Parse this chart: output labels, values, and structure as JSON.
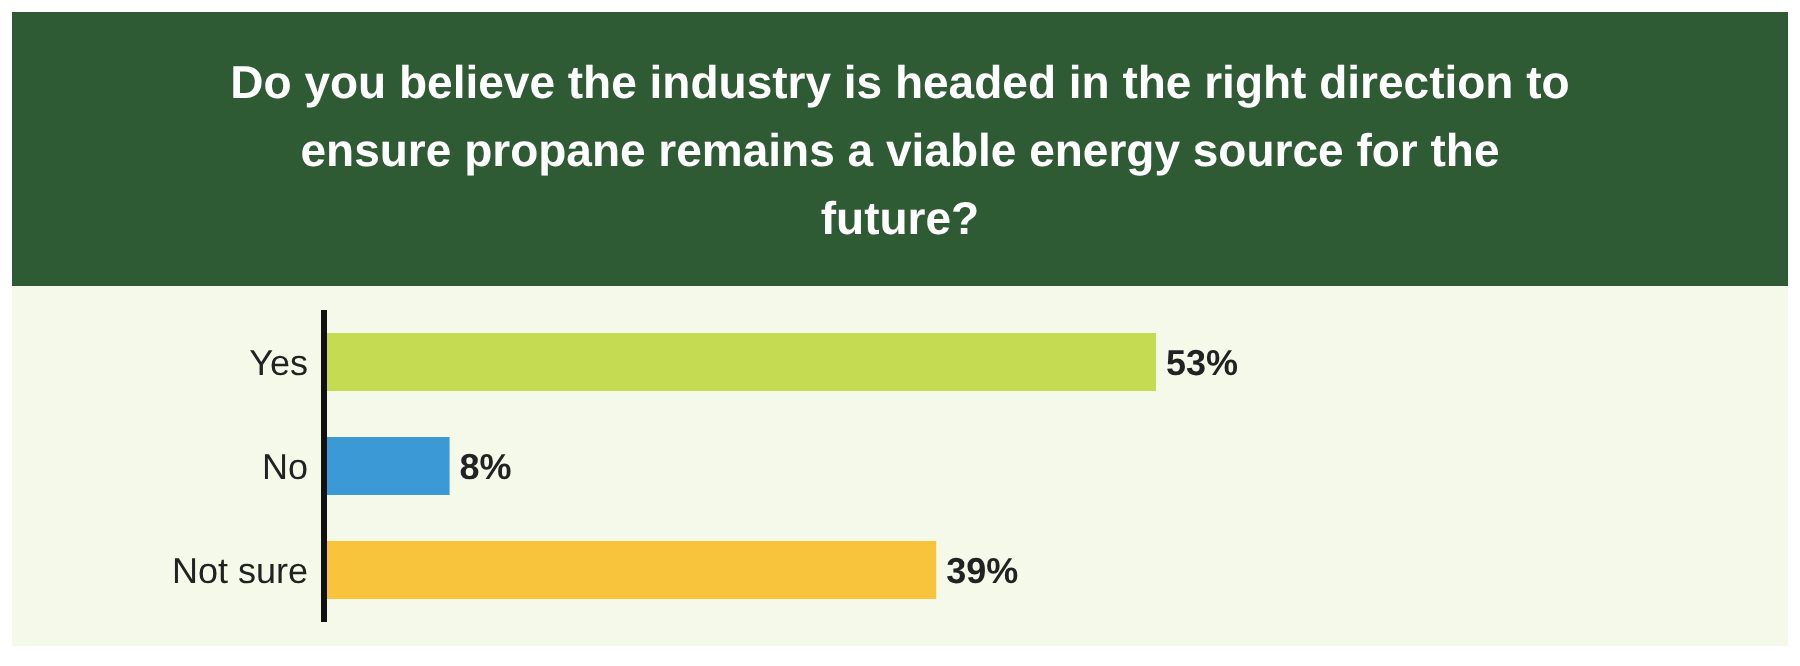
{
  "chart_data": {
    "type": "bar",
    "orientation": "horizontal",
    "title": "Do you believe the industry is headed in the right direction to ensure propane remains a viable energy source for the future?",
    "categories": [
      "Yes",
      "No",
      "Not sure"
    ],
    "values": [
      53,
      8,
      39
    ],
    "colors": [
      "#c5dc52",
      "#3b9ad6",
      "#f7c43c"
    ],
    "value_labels": [
      "53%",
      "8%",
      "39%"
    ]
  }
}
